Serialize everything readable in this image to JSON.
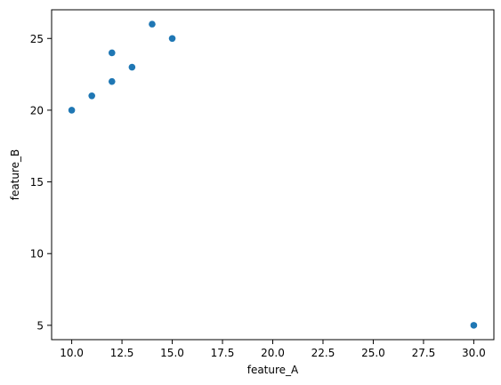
{
  "chart_data": {
    "type": "scatter",
    "title": "",
    "xlabel": "feature_A",
    "ylabel": "feature_B",
    "xlim": [
      9.0,
      31.0
    ],
    "ylim": [
      4.0,
      27.0
    ],
    "grid": false,
    "color": "#1f77b4",
    "xticks": [
      "10.0",
      "12.5",
      "15.0",
      "17.5",
      "20.0",
      "22.5",
      "25.0",
      "27.5",
      "30.0"
    ],
    "yticks": [
      "5",
      "10",
      "15",
      "20",
      "25"
    ],
    "points": [
      {
        "x": 10,
        "y": 20
      },
      {
        "x": 11,
        "y": 21
      },
      {
        "x": 12,
        "y": 22
      },
      {
        "x": 12,
        "y": 24
      },
      {
        "x": 13,
        "y": 23
      },
      {
        "x": 14,
        "y": 26
      },
      {
        "x": 15,
        "y": 25
      },
      {
        "x": 30,
        "y": 5
      }
    ]
  }
}
